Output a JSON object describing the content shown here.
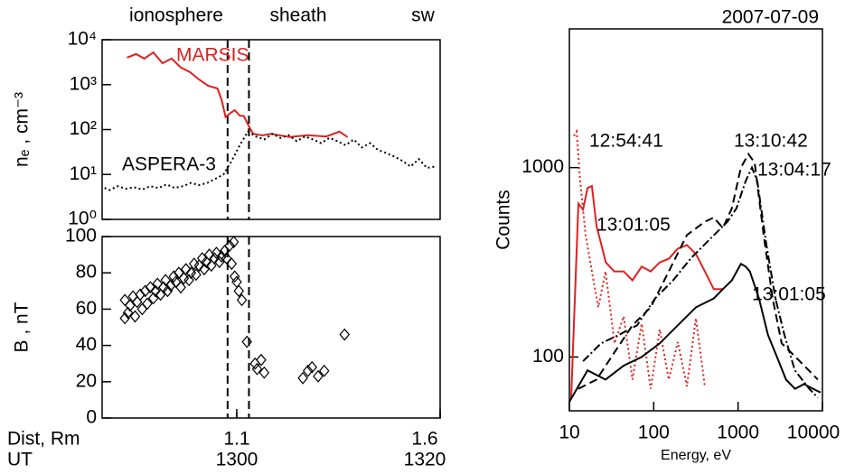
{
  "chart_data": [
    {
      "type": "line",
      "region_labels": [
        "ionosphere",
        "sheath",
        "sw"
      ],
      "ylabel": "nₑ , cm⁻³",
      "xlim": [
        -13.24,
        20
      ],
      "ylim": [
        1,
        10000
      ],
      "log_y": true,
      "yticks": [
        {
          "value": 1,
          "label": "10⁰"
        },
        {
          "value": 10,
          "label": "10¹"
        },
        {
          "value": 100,
          "label": "10²"
        },
        {
          "value": 1000,
          "label": "10³"
        },
        {
          "value": 10000,
          "label": "10⁴"
        }
      ],
      "vlines": [
        -0.9,
        1.2
      ],
      "series": [
        {
          "name": "MARSIS",
          "color": "#e02020",
          "dash": "solid",
          "x": [
            -10.8,
            -9.9,
            -9.1,
            -8.2,
            -7.3,
            -6.4,
            -5.5,
            -4.6,
            -3.7,
            -2.8,
            -1.9,
            -1.5,
            -1.1,
            -0.6,
            -0.2,
            0.3,
            0.7,
            1.2,
            1.6,
            2.5,
            3.4,
            5.2,
            7.0,
            8.8,
            10.1,
            10.9
          ],
          "values": [
            4000,
            4800,
            3800,
            5200,
            3000,
            3800,
            2400,
            1900,
            1300,
            940,
            820,
            470,
            190,
            235,
            270,
            205,
            200,
            117,
            81,
            74,
            80,
            68,
            75,
            70,
            90,
            68
          ]
        },
        {
          "name": "ASPERA-3",
          "color": "#000000",
          "dash": "dotted",
          "x": [
            -13,
            -12.5,
            -11.7,
            -10.9,
            -10.1,
            -9.3,
            -8.5,
            -7.7,
            -6.9,
            -6.1,
            -5.3,
            -4.5,
            -3.7,
            -2.9,
            -2.1,
            -1.3,
            -0.5,
            0.3,
            1.1,
            1.9,
            2.7,
            3.5,
            4.3,
            5.1,
            5.9,
            6.7,
            7.5,
            8.3,
            9.1,
            9.9,
            10.7,
            11.5,
            12.3,
            13.1,
            13.9,
            14.7,
            15.5,
            16.3,
            17.1,
            17.9,
            18.7,
            19.5
          ],
          "values": [
            5,
            4.5,
            5.5,
            4.8,
            5.2,
            4.6,
            5.5,
            5,
            6,
            5,
            5.5,
            6.5,
            5.8,
            6.5,
            8,
            10,
            20,
            45,
            90,
            70,
            60,
            80,
            65,
            75,
            55,
            70,
            60,
            50,
            65,
            55,
            45,
            60,
            40,
            50,
            35,
            30,
            25,
            20,
            15,
            22,
            14,
            15
          ]
        }
      ]
    },
    {
      "type": "scatter",
      "ylabel": "B , nT",
      "xlabel": "UT",
      "xlim": [
        -13.24,
        20
      ],
      "ylim": [
        0,
        100
      ],
      "yticks": [
        0,
        20,
        40,
        60,
        80,
        100
      ],
      "xticks": [
        {
          "value": 0,
          "label": "1300"
        },
        {
          "value": 20,
          "label": "1320"
        }
      ],
      "dist_axis": {
        "label": "Dist, Rm",
        "lim": [
          0.769,
          1.6
        ],
        "ticks": [
          1.1,
          1.6
        ]
      },
      "vlines": [
        -0.9,
        1.2
      ],
      "series": [
        {
          "color": "#000000",
          "x": [
            -11,
            -11,
            -10.7,
            -10.5,
            -10.2,
            -10,
            -9.8,
            -9.5,
            -9.3,
            -9,
            -8.8,
            -8.5,
            -8.2,
            -8,
            -7.8,
            -7.5,
            -7.2,
            -7,
            -6.8,
            -6.5,
            -6.2,
            -6,
            -5.7,
            -5.5,
            -5.2,
            -5,
            -4.7,
            -4.5,
            -4.2,
            -4,
            -3.7,
            -3.4,
            -3.2,
            -3,
            -2.7,
            -2.5,
            -2.2,
            -2,
            -1.7,
            -1.5,
            -1.2,
            -1,
            -0.7,
            -0.5,
            -0.3,
            -0.2,
            0,
            0.2,
            0.5,
            1.0,
            1.8,
            2.0,
            2.4,
            2.7,
            6.5,
            7.0,
            7.4,
            8.0,
            8.6,
            10.6
          ],
          "values": [
            55,
            65,
            58,
            62,
            67,
            56,
            64,
            68,
            60,
            70,
            63,
            72,
            66,
            70,
            74,
            68,
            72,
            76,
            70,
            73,
            78,
            75,
            80,
            72,
            77,
            82,
            76,
            80,
            85,
            79,
            84,
            88,
            82,
            86,
            90,
            84,
            88,
            91,
            86,
            89,
            92,
            88,
            95,
            85,
            97,
            78,
            75,
            70,
            65,
            42,
            30,
            27,
            32,
            25,
            22,
            26,
            28,
            23,
            26,
            46
          ]
        }
      ]
    },
    {
      "type": "line",
      "title": "2007-07-09",
      "ylabel": "Counts",
      "xlabel": "Energy, eV",
      "xlim": [
        10,
        10000
      ],
      "log_x": true,
      "ylim": [
        52,
        5400
      ],
      "log_y": true,
      "xticks": [
        10,
        100,
        1000,
        10000
      ],
      "yticks": [
        100,
        1000
      ],
      "series": [
        {
          "name": "12:54:41",
          "color": "#e02020",
          "dash": "dotted",
          "x": [
            11.3,
            12.2,
            13.4,
            15.6,
            18.5,
            22.0,
            26.8,
            34.3,
            44,
            56,
            72,
            92,
            118,
            151,
            193,
            247,
            316,
            404
          ],
          "values": [
            1470,
            1550,
            850,
            440,
            283,
            183,
            283,
            118,
            164,
            76,
            150,
            68,
            140,
            76,
            120,
            70,
            160,
            70
          ]
        },
        {
          "name": "13:01:05",
          "color": "#e02020",
          "dash": "solid",
          "x": [
            10.5,
            12.8,
            14.5,
            16.4,
            18.5,
            21,
            24,
            27,
            34,
            44,
            56,
            72,
            92,
            118,
            151,
            193,
            247,
            316,
            404,
            516,
            660
          ],
          "values": [
            61,
            645,
            600,
            780,
            800,
            490,
            390,
            316,
            283,
            283,
            254,
            300,
            283,
            316,
            330,
            373,
            390,
            350,
            283,
            228,
            228
          ]
        },
        {
          "name": "13:10:42",
          "color": "#000000",
          "dash": "dashed",
          "x": [
            12.8,
            21,
            34.3,
            56,
            92,
            151,
            247,
            404,
            516,
            660,
            844,
            1080,
            1330,
            1570,
            2010,
            2570,
            3290,
            4210,
            5390,
            6890,
            8810
          ],
          "values": [
            68,
            76,
            106,
            147,
            183,
            283,
            440,
            518,
            545,
            480,
            610,
            1000,
            1180,
            1060,
            440,
            204,
            118,
            106,
            95,
            85,
            76
          ]
        },
        {
          "name": "13:04:17",
          "color": "#000000",
          "dash": "dashdot",
          "x": [
            14.5,
            23.7,
            38.8,
            63.5,
            104,
            170,
            279,
            457,
            748,
            958,
            1230,
            1460,
            1690,
            2160,
            2770,
            3540,
            4710,
            6970,
            8810
          ],
          "values": [
            95,
            118,
            131,
            147,
            204,
            254,
            334,
            416,
            518,
            610,
            850,
            1000,
            850,
            394,
            204,
            131,
            85,
            68,
            61
          ]
        },
        {
          "name": "13:01:05",
          "color": "#000000",
          "dash": "solid",
          "x": [
            10,
            16.4,
            26.8,
            44,
            72,
            118,
            193,
            316,
            516,
            660,
            844,
            1080,
            1230,
            1380,
            1770,
            2260,
            2890,
            3700,
            4730,
            6050,
            7740,
            9500
          ],
          "values": [
            58,
            85,
            76,
            90,
            100,
            118,
            147,
            183,
            204,
            228,
            254,
            310,
            300,
            283,
            204,
            131,
            100,
            76,
            68,
            72,
            68,
            65
          ]
        }
      ]
    }
  ]
}
